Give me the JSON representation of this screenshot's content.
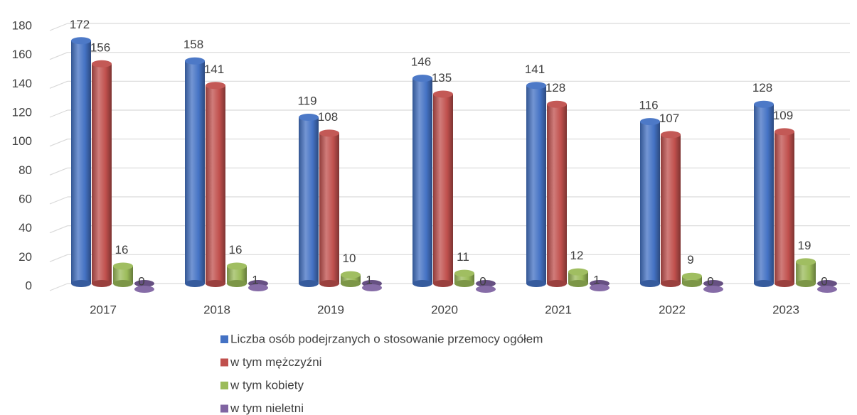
{
  "chart_data": {
    "type": "bar3d",
    "categories": [
      "2017",
      "2018",
      "2019",
      "2020",
      "2021",
      "2022",
      "2023"
    ],
    "series": [
      {
        "name": "Liczba osób podejrzanych o stosowanie przemocy ogółem",
        "color": "#4472c4",
        "values": [
          172,
          158,
          119,
          146,
          141,
          116,
          128
        ]
      },
      {
        "name": "w tym mężczyźni",
        "color": "#c0504d",
        "values": [
          156,
          141,
          108,
          135,
          128,
          107,
          109
        ]
      },
      {
        "name": "w tym kobiety",
        "color": "#9bbb59",
        "values": [
          16,
          16,
          10,
          11,
          12,
          9,
          19
        ]
      },
      {
        "name": "w tym nieletni",
        "color": "#8064a2",
        "values": [
          0,
          1,
          1,
          0,
          1,
          0,
          0
        ]
      }
    ],
    "ylim": [
      0,
      180
    ],
    "yticks": [
      0,
      20,
      40,
      60,
      80,
      100,
      120,
      140,
      160,
      180
    ],
    "grid": true,
    "legend": "bottom"
  }
}
